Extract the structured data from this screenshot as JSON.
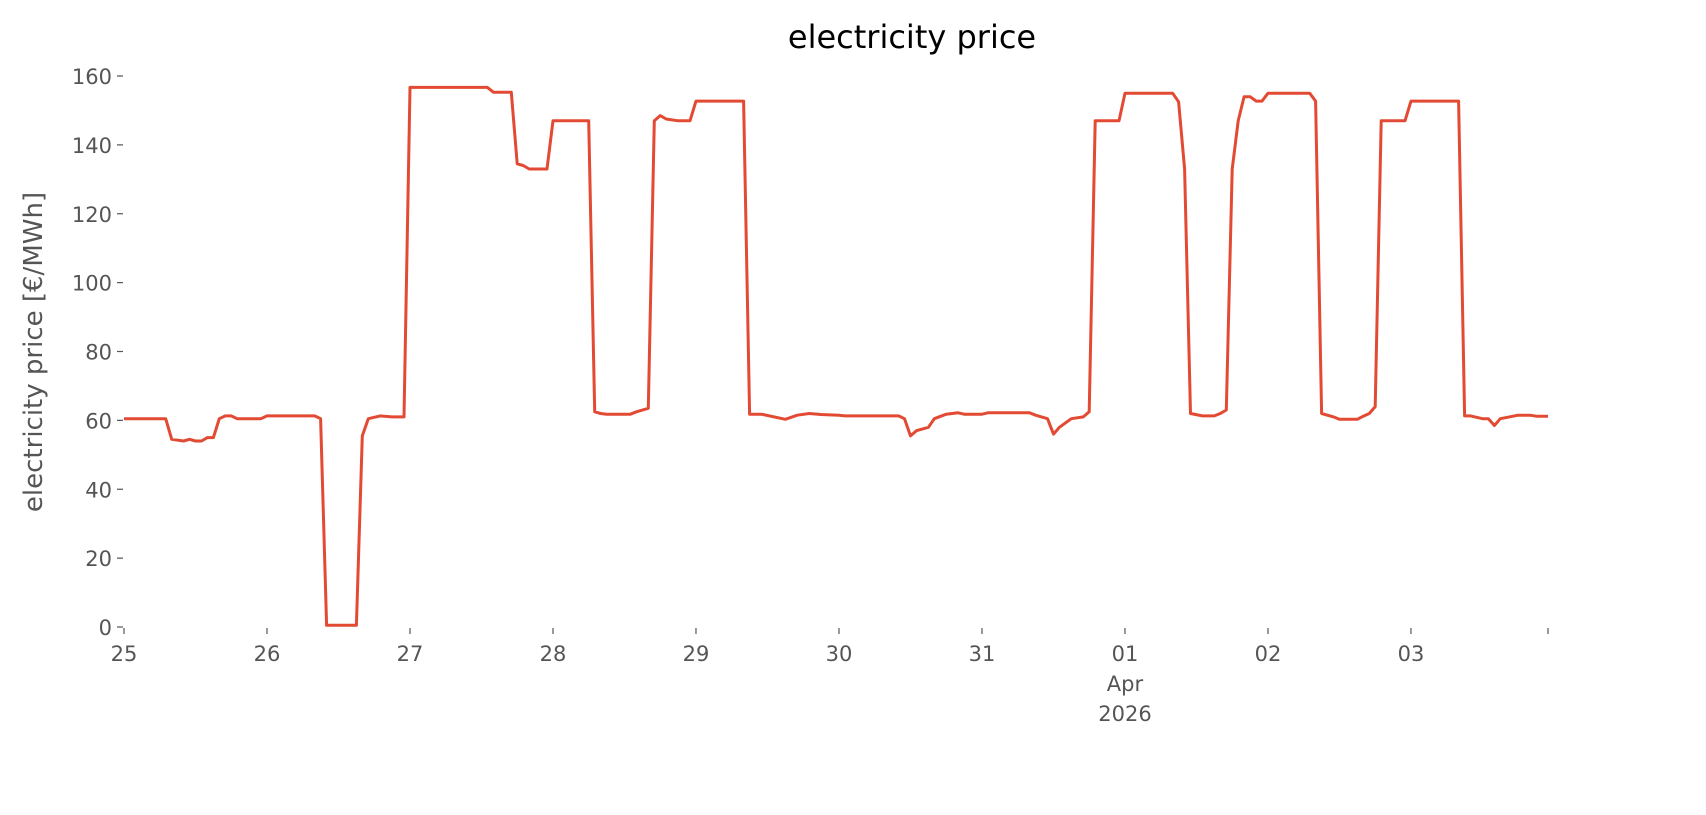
{
  "chart_data": {
    "type": "line",
    "title": "electricity price",
    "ylabel": "electricity price [€/MWh]",
    "x": [
      0,
      7,
      8,
      10,
      11,
      12,
      13,
      14,
      15,
      16,
      17,
      18,
      19,
      23,
      24,
      32,
      33,
      34,
      39,
      40,
      41,
      43,
      45,
      47,
      48,
      61,
      62,
      65,
      66,
      67,
      68,
      71,
      72,
      78,
      79,
      80,
      81,
      85,
      86,
      88,
      89,
      90,
      91,
      93,
      95,
      96,
      104,
      105,
      107,
      111,
      113,
      115,
      117,
      120,
      121,
      130,
      131,
      132,
      133,
      135,
      136,
      138,
      140,
      141,
      144,
      145,
      152,
      153,
      155,
      156,
      157,
      159,
      161,
      162,
      163,
      167,
      168,
      176,
      177,
      178,
      179,
      181,
      183,
      184,
      185,
      186,
      187,
      188,
      189,
      190,
      191,
      192,
      199,
      200,
      201,
      203,
      204,
      207,
      208,
      209,
      210,
      211,
      215,
      216,
      224,
      225,
      226,
      228,
      229,
      230,
      231,
      234,
      236,
      237,
      239
    ],
    "series": [
      {
        "name": "electricity price",
        "color": "#E24A33",
        "values": [
          60.5,
          60.5,
          54.5,
          54,
          54.5,
          54,
          54,
          55,
          55,
          60.5,
          61.3,
          61.3,
          60.5,
          60.5,
          61.3,
          61.3,
          60.5,
          0.5,
          0.5,
          55.5,
          60.5,
          61.3,
          61,
          61,
          156.7,
          156.7,
          155.3,
          155.3,
          134.5,
          134,
          133,
          133,
          147,
          147,
          62.5,
          62,
          61.8,
          61.8,
          62.5,
          63.5,
          147,
          148.5,
          147.5,
          147,
          147,
          152.7,
          152.7,
          61.8,
          61.8,
          60.3,
          61.5,
          62,
          61.7,
          61.5,
          61.3,
          61.3,
          60.5,
          55.5,
          57,
          58,
          60.5,
          61.8,
          62.2,
          61.8,
          61.8,
          62.2,
          62.2,
          61.5,
          60.5,
          56,
          58,
          60.5,
          61,
          62.5,
          147,
          147,
          155,
          155,
          152.5,
          133,
          62,
          61.3,
          61.3,
          62,
          63,
          133,
          147,
          154,
          154,
          152.7,
          152.7,
          155,
          155,
          152.7,
          62,
          61,
          60.3,
          60.3,
          61.2,
          62,
          64,
          147,
          147,
          152.7,
          152.7,
          61.3,
          61.3,
          60.5,
          60.5,
          58.5,
          60.5,
          61.5,
          61.5,
          61.2,
          61.2
        ]
      }
    ],
    "xlim": [
      0,
      239
    ],
    "xticks": [
      {
        "value": 0,
        "label": "25"
      },
      {
        "value": 24,
        "label": "26"
      },
      {
        "value": 48,
        "label": "27"
      },
      {
        "value": 72,
        "label": "28"
      },
      {
        "value": 96,
        "label": "29"
      },
      {
        "value": 120,
        "label": "30"
      },
      {
        "value": 144,
        "label": "31"
      },
      {
        "value": 168,
        "label": "01\nApr\n2026"
      },
      {
        "value": 192,
        "label": "02"
      },
      {
        "value": 216,
        "label": "03"
      },
      {
        "value": 239,
        "label": null
      }
    ],
    "ylim": [
      0,
      160
    ],
    "yticks": [
      0,
      20,
      40,
      60,
      80,
      100,
      120,
      140,
      160
    ],
    "grid": false
  }
}
